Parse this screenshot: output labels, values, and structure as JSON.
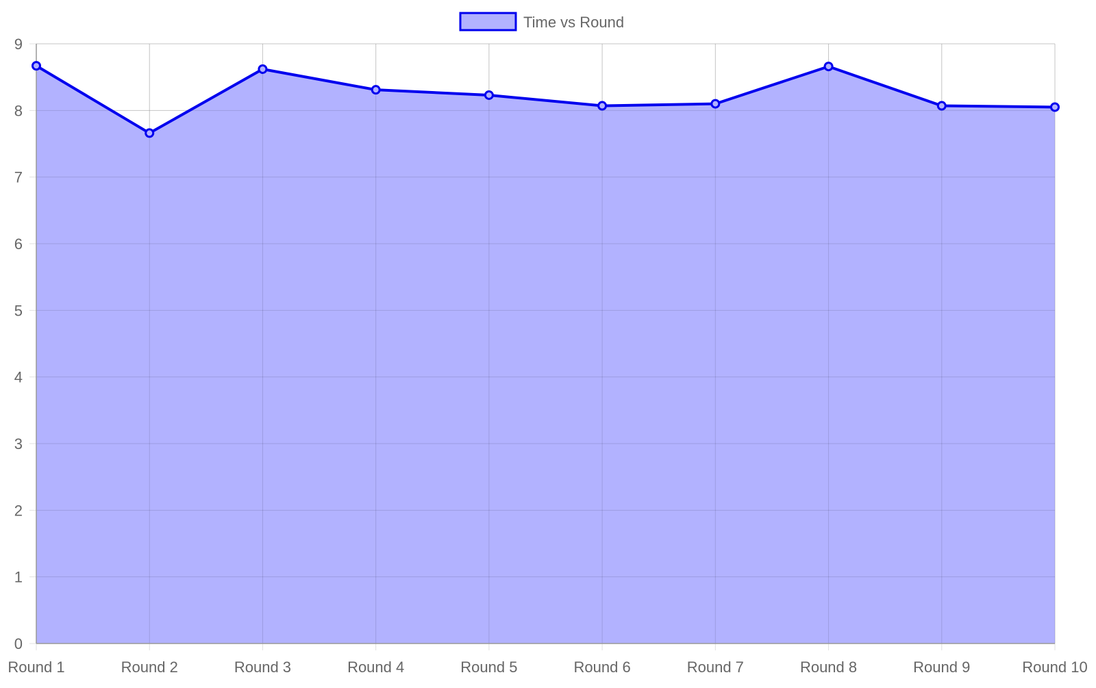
{
  "chart_data": {
    "type": "area",
    "title": "",
    "xlabel": "",
    "ylabel": "",
    "categories": [
      "Round 1",
      "Round 2",
      "Round 3",
      "Round 4",
      "Round 5",
      "Round 6",
      "Round 7",
      "Round 8",
      "Round 9",
      "Round 10"
    ],
    "series": [
      {
        "name": "Time vs Round",
        "values": [
          8.67,
          7.66,
          8.62,
          8.31,
          8.23,
          8.07,
          8.1,
          8.66,
          8.07,
          8.05
        ],
        "line_color": "#0000ee",
        "fill_color": "#b2b2ff"
      }
    ],
    "ylim": [
      0,
      9
    ],
    "yticks": [
      0,
      1,
      2,
      3,
      4,
      5,
      6,
      7,
      8,
      9
    ],
    "grid": true,
    "legend_position": "top-center"
  }
}
